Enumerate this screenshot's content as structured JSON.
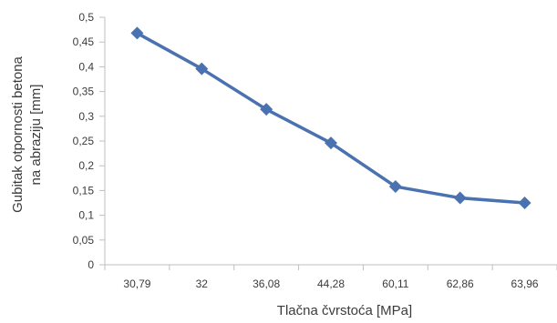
{
  "chart_data": {
    "type": "line",
    "categories": [
      "30,79",
      "32",
      "36,08",
      "44,28",
      "60,11",
      "62,86",
      "63,96"
    ],
    "series": [
      {
        "values": [
          0.468,
          0.396,
          0.314,
          0.246,
          0.158,
          0.135,
          0.125
        ]
      }
    ],
    "ylim": [
      0,
      0.5
    ],
    "y_ticks": [
      0,
      0.05,
      0.1,
      0.15,
      0.2,
      0.25,
      0.3,
      0.35,
      0.4,
      0.45,
      0.5
    ],
    "y_tick_labels": [
      "0",
      "0,05",
      "0,1",
      "0,15",
      "0,2",
      "0,25",
      "0,3",
      "0,35",
      "0,4",
      "0,45",
      "0,5"
    ],
    "xlabel": "Tlačna čvrstoća [MPa]",
    "ylabel_line1": "Gubitak otpornosti betona",
    "ylabel_line2": "na abraziju [mm]",
    "grid": false,
    "legend": "none",
    "colors": {
      "series": "#4a72b0",
      "axis": "#bfbfbf",
      "text": "#3b3b3b"
    }
  }
}
